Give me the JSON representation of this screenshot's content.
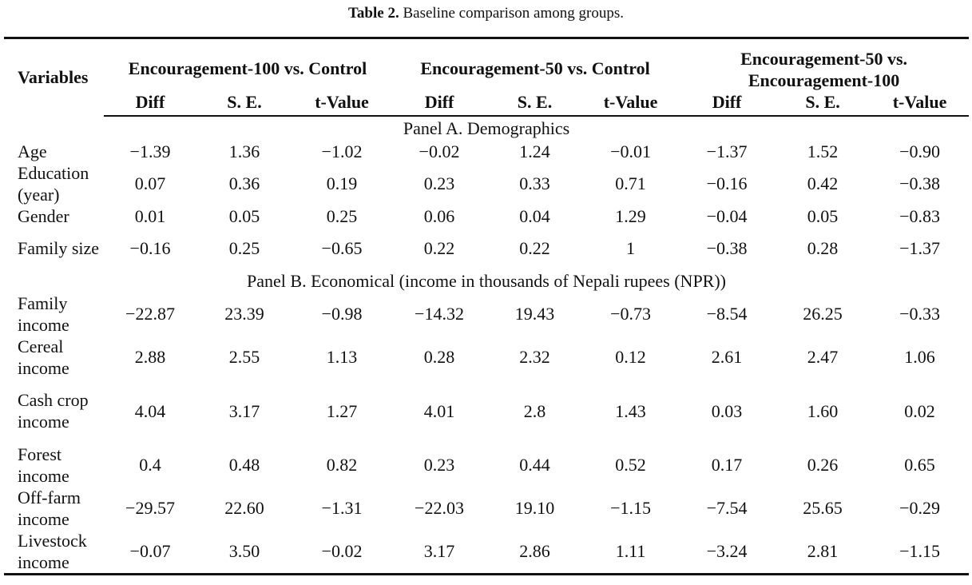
{
  "caption": {
    "label": "Table 2.",
    "text": " Baseline comparison among groups."
  },
  "header": {
    "variables": "Variables",
    "groups": [
      "Encouragement-100 vs. Control",
      "Encouragement-50 vs. Control",
      "Encouragement-50 vs. Encouragement-100"
    ],
    "subcols": [
      "Diff",
      "S. E.",
      "t-Value",
      "Diff",
      "S. E.",
      "t-Value",
      "Diff",
      "S. E.",
      "t-Value"
    ]
  },
  "panels": [
    {
      "title": "Panel A. Demographics",
      "rows": [
        {
          "label": "Age",
          "values": [
            "−1.39",
            "1.36",
            "−1.02",
            "−0.02",
            "1.24",
            "−0.01",
            "−1.37",
            "1.52",
            "−0.90"
          ]
        },
        {
          "label": "Education (year)",
          "values": [
            "0.07",
            "0.36",
            "0.19",
            "0.23",
            "0.33",
            "0.71",
            "−0.16",
            "0.42",
            "−0.38"
          ]
        },
        {
          "label": "Gender",
          "values": [
            "0.01",
            "0.05",
            "0.25",
            "0.06",
            "0.04",
            "1.29",
            "−0.04",
            "0.05",
            "−0.83"
          ]
        },
        {
          "label": "Family size",
          "values": [
            "−0.16",
            "0.25",
            "−0.65",
            "0.22",
            "0.22",
            "1",
            "−0.38",
            "0.28",
            "−1.37"
          ]
        }
      ]
    },
    {
      "title": "Panel B. Economical (income in thousands of Nepali rupees (NPR))",
      "rows": [
        {
          "label": "Family income",
          "values": [
            "−22.87",
            "23.39",
            "−0.98",
            "−14.32",
            "19.43",
            "−0.73",
            "−8.54",
            "26.25",
            "−0.33"
          ]
        },
        {
          "label": "Cereal income",
          "values": [
            "2.88",
            "2.55",
            "1.13",
            "0.28",
            "2.32",
            "0.12",
            "2.61",
            "2.47",
            "1.06"
          ]
        },
        {
          "label": "Cash crop income",
          "values": [
            "4.04",
            "3.17",
            "1.27",
            "4.01",
            "2.8",
            "1.43",
            "0.03",
            "1.60",
            "0.02"
          ]
        },
        {
          "label": "Forest income",
          "values": [
            "0.4",
            "0.48",
            "0.82",
            "0.23",
            "0.44",
            "0.52",
            "0.17",
            "0.26",
            "0.65"
          ]
        },
        {
          "label": "Off-farm income",
          "values": [
            "−29.57",
            "22.60",
            "−1.31",
            "−22.03",
            "19.10",
            "−1.15",
            "−7.54",
            "25.65",
            "−0.29"
          ]
        },
        {
          "label": "Livestock income",
          "values": [
            "−0.07",
            "3.50",
            "−0.02",
            "3.17",
            "2.86",
            "1.11",
            "−3.24",
            "2.81",
            "−1.15"
          ]
        }
      ]
    }
  ]
}
